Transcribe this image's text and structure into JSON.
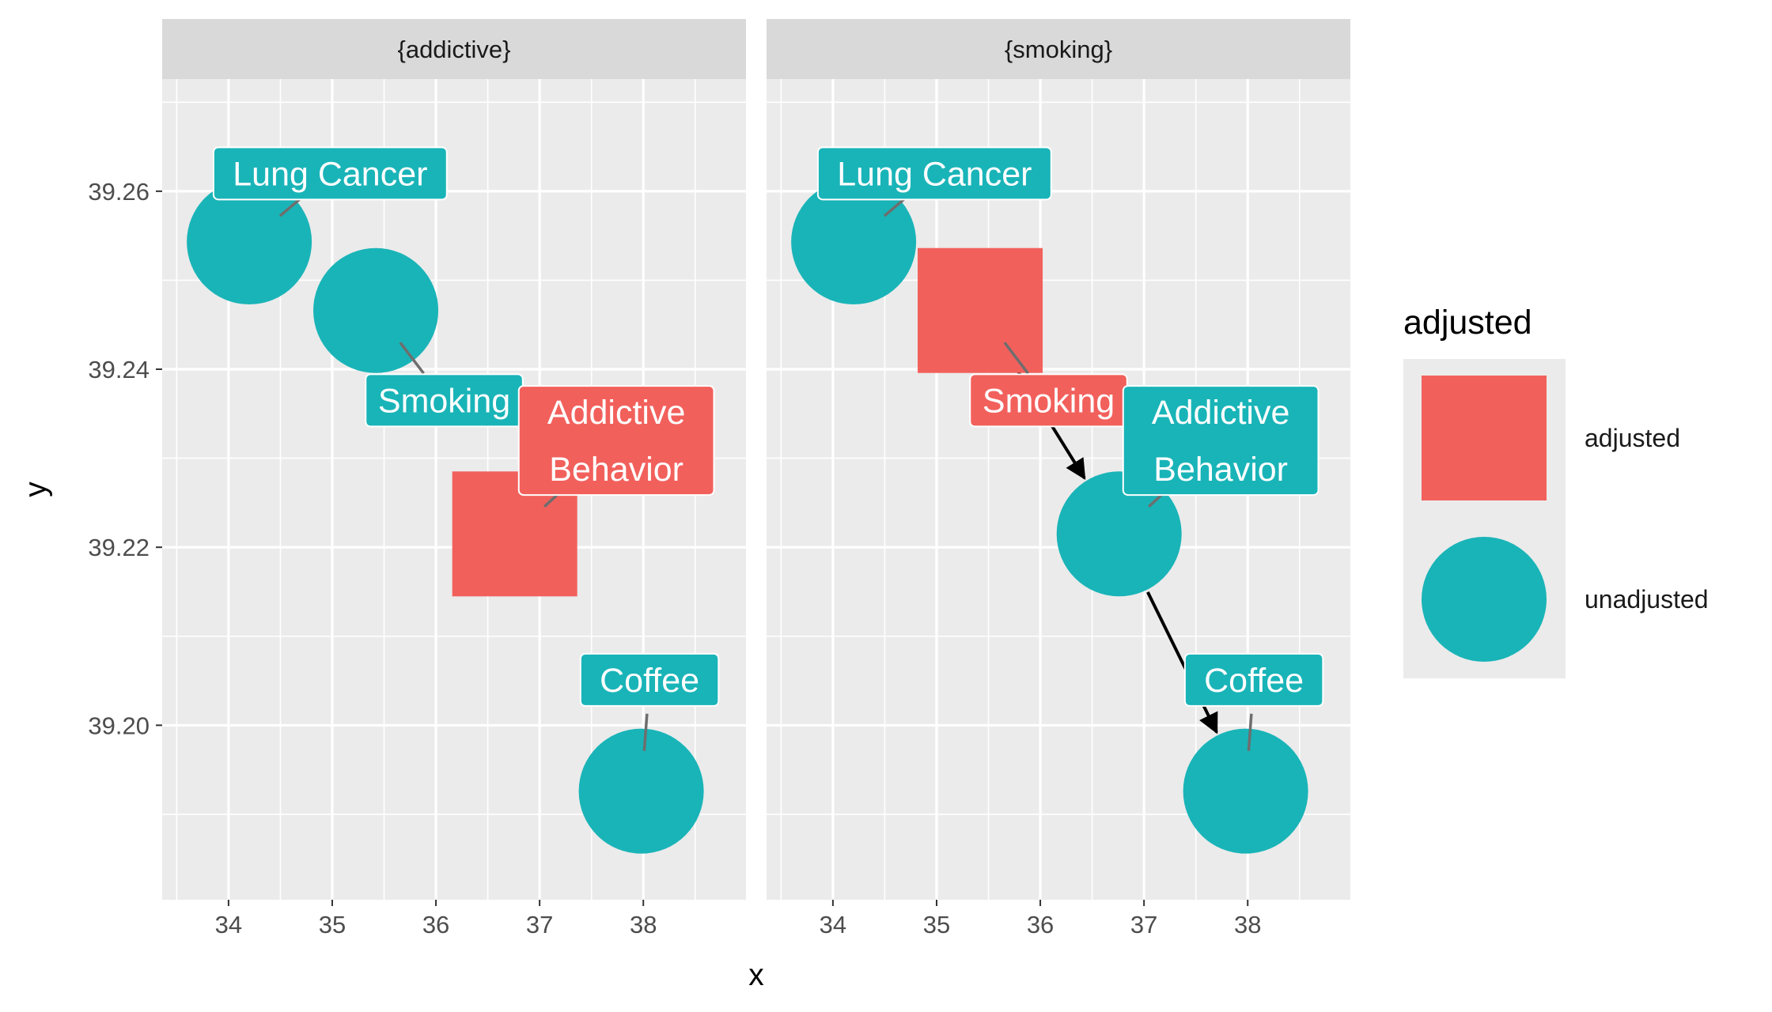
{
  "chart_data": {
    "type": "scatter",
    "xlabel": "x",
    "ylabel": "y",
    "xlim": [
      33.36,
      38.99
    ],
    "ylim": [
      39.1804,
      39.2726
    ],
    "x_ticks": [
      34,
      35,
      36,
      37,
      38
    ],
    "x_tick_labels": [
      "34",
      "35",
      "36",
      "37",
      "38"
    ],
    "y_ticks": [
      39.2,
      39.22,
      39.24,
      39.26
    ],
    "y_tick_labels": [
      "39.20",
      "39.22",
      "39.24",
      "39.26"
    ],
    "grid": true,
    "legend": {
      "title": "adjusted",
      "placement": "right",
      "entries": [
        {
          "label": "adjusted",
          "shape": "square",
          "color": "#F2605C"
        },
        {
          "label": "unadjusted",
          "shape": "circle",
          "color": "#19B4B8"
        }
      ]
    },
    "colors": {
      "adjusted": "#F2605C",
      "unadjusted": "#19B4B8"
    },
    "panels": [
      {
        "strip": "{addictive}",
        "nodes": [
          {
            "name": "Lung Cancer",
            "x": 34.2,
            "y": 39.2543,
            "status": "unadjusted",
            "label": "Lung Cancer",
            "label_x": 34.98,
            "label_y": 39.262
          },
          {
            "name": "Smoking",
            "x": 35.42,
            "y": 39.2466,
            "status": "unadjusted",
            "label": "Smoking",
            "label_x": 36.08,
            "label_y": 39.2365
          },
          {
            "name": "Addictive Behavior",
            "x": 36.76,
            "y": 39.2215,
            "status": "adjusted",
            "label": "Addictive\nBehavior",
            "label_x": 37.74,
            "label_y": 39.232
          },
          {
            "name": "Coffee",
            "x": 37.98,
            "y": 39.1926,
            "status": "unadjusted",
            "label": "Coffee",
            "label_x": 38.06,
            "label_y": 39.2051
          }
        ],
        "edges": []
      },
      {
        "strip": "{smoking}",
        "nodes": [
          {
            "name": "Lung Cancer",
            "x": 34.2,
            "y": 39.2543,
            "status": "unadjusted",
            "label": "Lung Cancer",
            "label_x": 34.98,
            "label_y": 39.262
          },
          {
            "name": "Smoking",
            "x": 35.42,
            "y": 39.2466,
            "status": "adjusted",
            "label": "Smoking",
            "label_x": 36.08,
            "label_y": 39.2365
          },
          {
            "name": "Addictive Behavior",
            "x": 36.76,
            "y": 39.2215,
            "status": "unadjusted",
            "label": "Addictive\nBehavior",
            "label_x": 37.74,
            "label_y": 39.232
          },
          {
            "name": "Coffee",
            "x": 37.98,
            "y": 39.1926,
            "status": "unadjusted",
            "label": "Coffee",
            "label_x": 38.06,
            "label_y": 39.2051
          }
        ],
        "edges": [
          {
            "from": "Smoking",
            "to": "Addictive Behavior"
          },
          {
            "from": "Addictive Behavior",
            "to": "Coffee"
          }
        ]
      }
    ]
  }
}
